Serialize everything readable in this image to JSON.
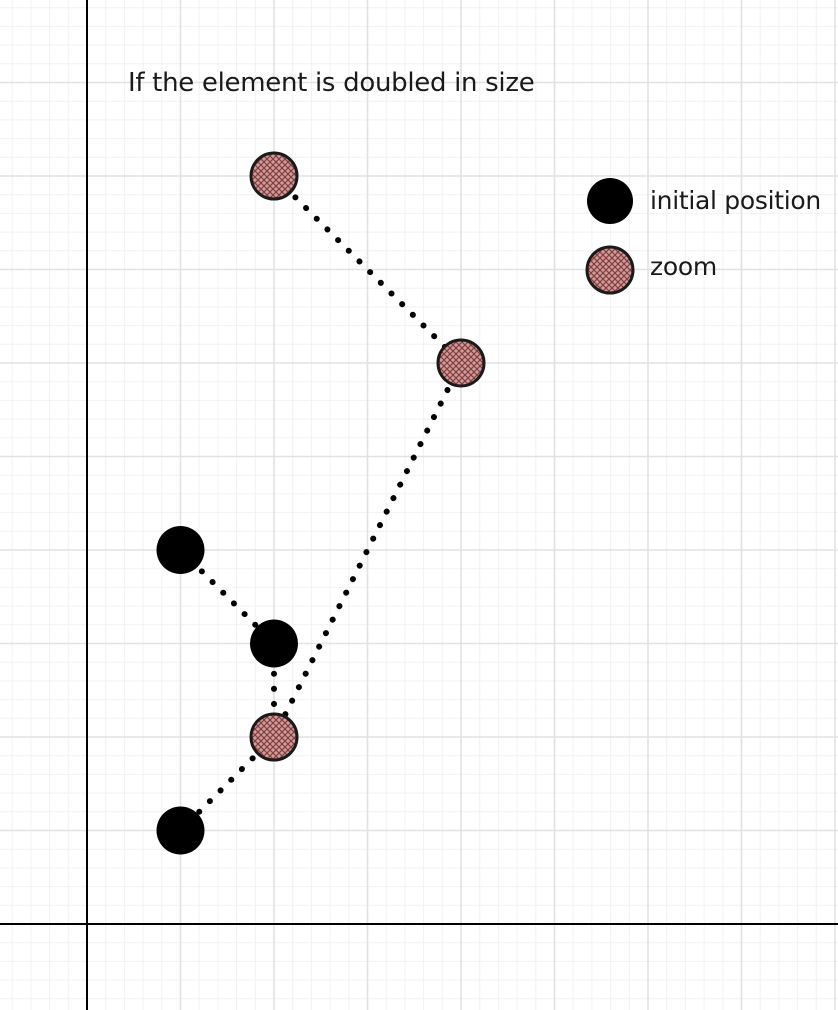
{
  "title": "If the element is doubled in size",
  "legend": {
    "initial_label": "initial position",
    "zoom_label": "zoom"
  },
  "colors": {
    "grid_minor": "#f2f2f2",
    "grid_major": "#e2e2e2",
    "axis": "#000000",
    "initial_fill": "#000000",
    "zoom_fill": "#c9a0a0",
    "zoom_hatch": "#8a3a3a",
    "connector": "#000000"
  },
  "points": {
    "initial": [
      {
        "id": "a",
        "x": 1,
        "y": 4
      },
      {
        "id": "b",
        "x": 2,
        "y": 3
      },
      {
        "id": "c",
        "x": 1,
        "y": 1
      }
    ],
    "zoom": [
      {
        "id": "a",
        "x": 2,
        "y": 8
      },
      {
        "id": "b",
        "x": 4,
        "y": 6
      },
      {
        "id": "c",
        "x": 2,
        "y": 2
      }
    ]
  },
  "connectors": [
    {
      "from": "initial.a",
      "to": "initial.b"
    },
    {
      "from": "initial.b",
      "to": "zoom.c"
    },
    {
      "from": "zoom.c",
      "to": "initial.c"
    },
    {
      "from": "zoom.a",
      "to": "zoom.b"
    },
    {
      "from": "zoom.b",
      "to": "zoom.c"
    }
  ]
}
